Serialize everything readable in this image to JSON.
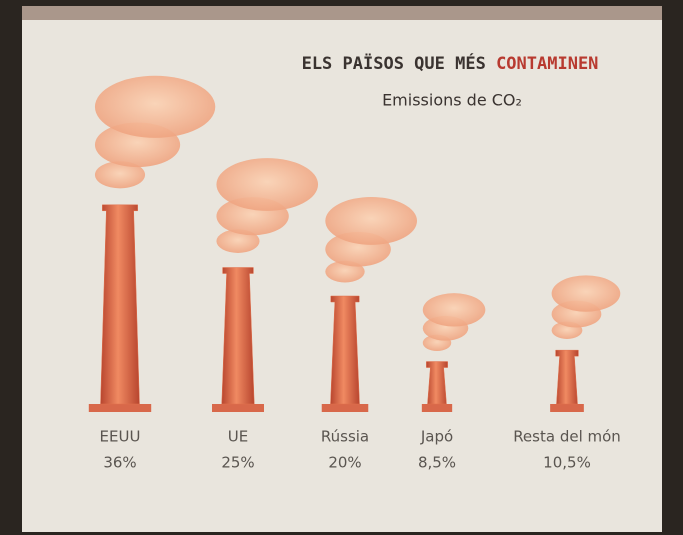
{
  "chart_data": {
    "type": "chimney",
    "title": "ELS PAÏSOS QUE MÉS",
    "title_highlight": "CONTAMINEN",
    "subtitle": "Emissions de CO₂",
    "categories": [
      "EEUU",
      "UE",
      "Rússia",
      "Japó",
      "Resta del món"
    ],
    "values": [
      36,
      25,
      20,
      8.5,
      10.5
    ],
    "value_labels": [
      "36%",
      "25%",
      "20%",
      "8,5%",
      "10,5%"
    ],
    "color": "#e0704c"
  }
}
